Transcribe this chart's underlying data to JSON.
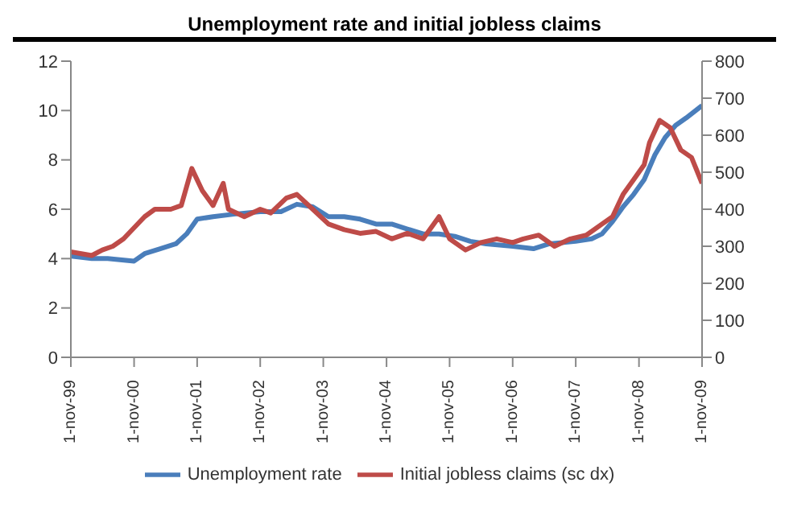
{
  "chart_data": {
    "type": "line",
    "title": "Unemployment rate and initial jobless claims",
    "xlim": [
      "1999-11",
      "2009-11"
    ],
    "xticks": [
      {
        "value": "1999-11-01",
        "label": "1-nov-99"
      },
      {
        "value": "2000-11-01",
        "label": "1-nov-00"
      },
      {
        "value": "2001-11-01",
        "label": "1-nov-01"
      },
      {
        "value": "2002-11-01",
        "label": "1-nov-02"
      },
      {
        "value": "2003-11-01",
        "label": "1-nov-03"
      },
      {
        "value": "2004-11-01",
        "label": "1-nov-04"
      },
      {
        "value": "2005-11-01",
        "label": "1-nov-05"
      },
      {
        "value": "2006-11-01",
        "label": "1-nov-06"
      },
      {
        "value": "2007-11-01",
        "label": "1-nov-07"
      },
      {
        "value": "2008-11-01",
        "label": "1-nov-08"
      },
      {
        "value": "2009-11-01",
        "label": "1-nov-09"
      }
    ],
    "ylim": [
      0,
      12
    ],
    "yticks": [
      0,
      2,
      4,
      6,
      8,
      10,
      12
    ],
    "y2lim": [
      0,
      800
    ],
    "y2ticks": [
      0,
      100,
      200,
      300,
      400,
      500,
      600,
      700,
      800
    ],
    "legend": "bottom",
    "grid": false,
    "marker": "none",
    "line_style": "solid",
    "series": [
      {
        "name": "Unemployment rate",
        "color": "#4a7ebb",
        "x": [
          "1999-11",
          "2000-03",
          "2000-06",
          "2000-11",
          "2001-01",
          "2001-04",
          "2001-07",
          "2001-09",
          "2001-11",
          "2002-02",
          "2002-06",
          "2002-11",
          "2003-03",
          "2003-06",
          "2003-09",
          "2003-12",
          "2004-03",
          "2004-06",
          "2004-09",
          "2004-12",
          "2005-03",
          "2005-06",
          "2005-09",
          "2005-12",
          "2006-03",
          "2006-06",
          "2006-11",
          "2007-03",
          "2007-06",
          "2007-11",
          "2008-02",
          "2008-04",
          "2008-06",
          "2008-08",
          "2008-10",
          "2008-12",
          "2009-02",
          "2009-04",
          "2009-06",
          "2009-08",
          "2009-11"
        ],
        "values": [
          4.1,
          4.0,
          4.0,
          3.9,
          4.2,
          4.4,
          4.6,
          5.0,
          5.6,
          5.7,
          5.8,
          5.9,
          5.9,
          6.2,
          6.1,
          5.7,
          5.7,
          5.6,
          5.4,
          5.4,
          5.2,
          5.0,
          5.0,
          4.9,
          4.7,
          4.6,
          4.5,
          4.4,
          4.6,
          4.7,
          4.8,
          5.0,
          5.5,
          6.1,
          6.6,
          7.2,
          8.2,
          8.9,
          9.4,
          9.7,
          10.2
        ]
      },
      {
        "name": "Initial jobless claims (sc dx)",
        "color": "#be4b48",
        "axis": "y2",
        "x": [
          "1999-11",
          "2000-01",
          "2000-03",
          "2000-05",
          "2000-07",
          "2000-09",
          "2000-11",
          "2001-01",
          "2001-03",
          "2001-06",
          "2001-08",
          "2001-10",
          "2001-12",
          "2002-02",
          "2002-04",
          "2002-05",
          "2002-08",
          "2002-11",
          "2003-01",
          "2003-04",
          "2003-06",
          "2003-09",
          "2003-12",
          "2004-03",
          "2004-06",
          "2004-09",
          "2004-12",
          "2005-03",
          "2005-06",
          "2005-09",
          "2005-11",
          "2006-02",
          "2006-05",
          "2006-08",
          "2006-11",
          "2007-01",
          "2007-04",
          "2007-07",
          "2007-10",
          "2008-01",
          "2008-04",
          "2008-06",
          "2008-08",
          "2008-10",
          "2008-12",
          "2009-01",
          "2009-03",
          "2009-05",
          "2009-07",
          "2009-09",
          "2009-11"
        ],
        "values": [
          285,
          280,
          275,
          290,
          300,
          320,
          350,
          380,
          400,
          400,
          410,
          510,
          450,
          410,
          470,
          400,
          380,
          400,
          390,
          430,
          440,
          400,
          360,
          345,
          335,
          340,
          320,
          335,
          320,
          380,
          320,
          290,
          310,
          320,
          310,
          320,
          330,
          300,
          320,
          330,
          360,
          380,
          440,
          480,
          520,
          580,
          640,
          620,
          560,
          540,
          470
        ]
      }
    ]
  }
}
